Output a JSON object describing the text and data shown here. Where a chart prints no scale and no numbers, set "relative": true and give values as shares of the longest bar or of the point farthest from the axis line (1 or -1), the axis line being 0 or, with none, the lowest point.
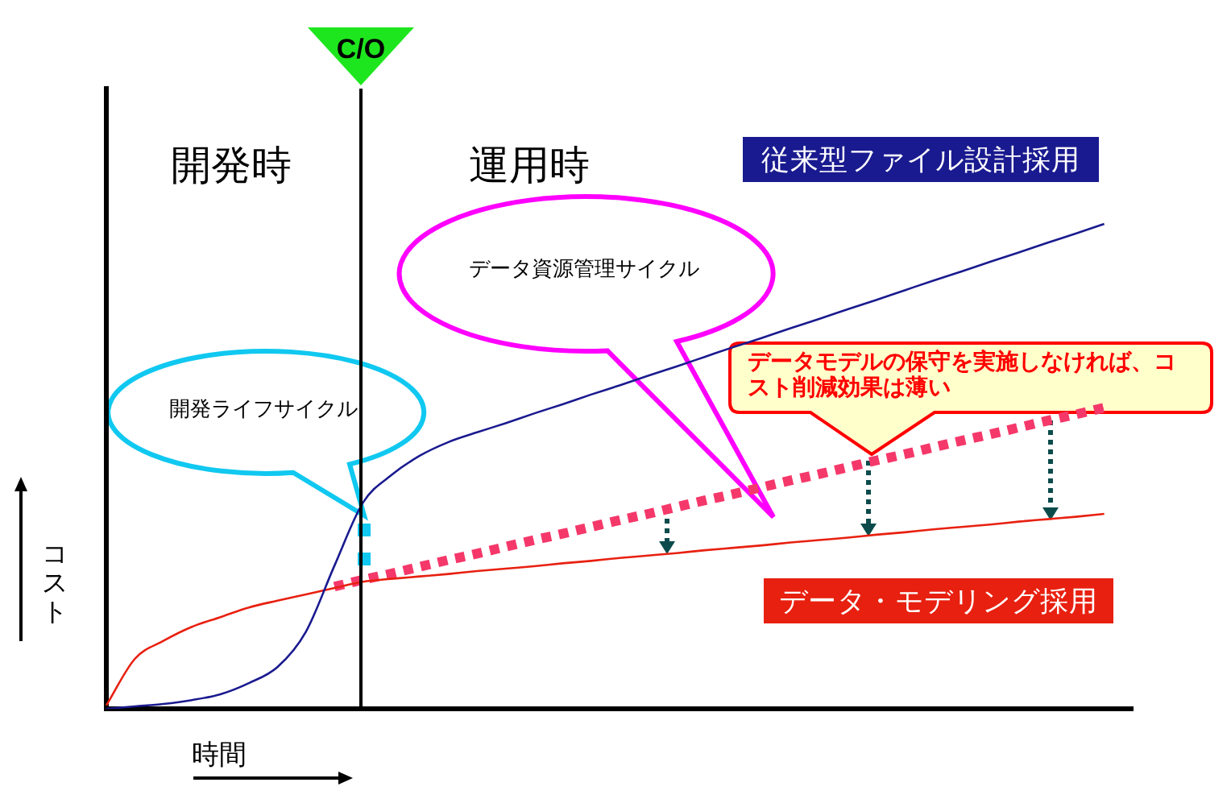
{
  "chart_data": {
    "type": "line",
    "relative": true,
    "xlabel": "時間",
    "ylabel": "コスト",
    "categories": [
      null,
      null,
      null,
      null,
      null,
      null,
      null,
      null,
      null,
      null,
      null,
      null,
      null,
      null,
      null,
      null,
      null,
      null,
      null,
      null,
      null,
      null,
      null,
      null,
      null,
      null,
      null,
      null,
      null,
      null,
      null,
      null,
      null,
      null,
      null,
      null,
      null
    ],
    "series": [
      {
        "name": "従来型ファイル設計採用",
        "color": "#1a1a90",
        "values": [
          0,
          0.005,
          0.01,
          0.018,
          0.03,
          0.053,
          0.086,
          0.159,
          0.295,
          0.425,
          0.482,
          0.522,
          0.55,
          0.57,
          0.589,
          0.609,
          0.628,
          0.648,
          0.667,
          0.687,
          0.706,
          0.726,
          0.746,
          0.765,
          0.785,
          0.804,
          0.824,
          0.843,
          0.863,
          0.883,
          0.902,
          0.922,
          0.941,
          0.961,
          0.98,
          1,
          null
        ]
      },
      {
        "name": "データ・モデリング採用",
        "color": "#e82010",
        "values": [
          0.007,
          0.103,
          0.14,
          0.169,
          0.189,
          0.209,
          0.223,
          0.236,
          0.249,
          0.262,
          0.268,
          0.273,
          0.278,
          0.284,
          0.289,
          0.294,
          0.3,
          0.305,
          0.311,
          0.316,
          0.321,
          0.327,
          0.332,
          0.337,
          0.343,
          0.348,
          0.353,
          0.359,
          0.364,
          0.37,
          0.375,
          0.38,
          0.386,
          0.391,
          0.396,
          0.402,
          null
        ]
      },
      {
        "color": "#f5386a",
        "line_style": "dotted",
        "values": [
          null,
          null,
          null,
          null,
          null,
          null,
          null,
          null,
          0.252,
          0.266,
          0.279,
          0.293,
          0.307,
          0.32,
          0.334,
          0.348,
          0.361,
          0.375,
          0.389,
          0.402,
          0.416,
          0.43,
          0.443,
          0.457,
          0.471,
          0.484,
          0.498,
          0.512,
          0.525,
          0.539,
          0.553,
          0.566,
          0.58,
          0.594,
          0.607,
          0.621,
          null
        ]
      }
    ],
    "annotations": [
      "C/O",
      "開発時",
      "運用時",
      "データ資源管理サイクル",
      "開発ライフサイクル",
      "データモデルの保守を実施しなければ、コスト削減効果は薄い"
    ],
    "legend": false,
    "grid": false,
    "tick_labels": false,
    "marker": "none"
  }
}
